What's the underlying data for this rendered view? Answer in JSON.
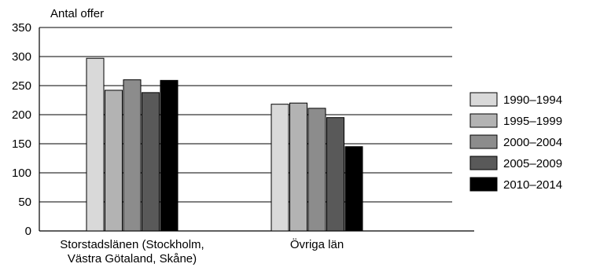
{
  "chart_data": {
    "type": "bar",
    "ylabel": "Antal offer",
    "ylim": [
      0,
      350
    ],
    "yticks": [
      0,
      50,
      100,
      150,
      200,
      250,
      300,
      350
    ],
    "grid": true,
    "legend_position": "right",
    "categories": [
      [
        "Storstadslänen (Stockholm,",
        "Västra Götaland, Skåne)"
      ],
      [
        "Övriga län"
      ]
    ],
    "series": [
      {
        "name": "1990–1994",
        "color": "#d9d9d9",
        "values": [
          297,
          218
        ]
      },
      {
        "name": "1995–1999",
        "color": "#b3b3b3",
        "values": [
          242,
          220
        ]
      },
      {
        "name": "2000–2004",
        "color": "#8c8c8c",
        "values": [
          260,
          211
        ]
      },
      {
        "name": "2005–2009",
        "color": "#595959",
        "values": [
          238,
          195
        ]
      },
      {
        "name": "2010–2014",
        "color": "#000000",
        "values": [
          259,
          145
        ]
      }
    ]
  }
}
